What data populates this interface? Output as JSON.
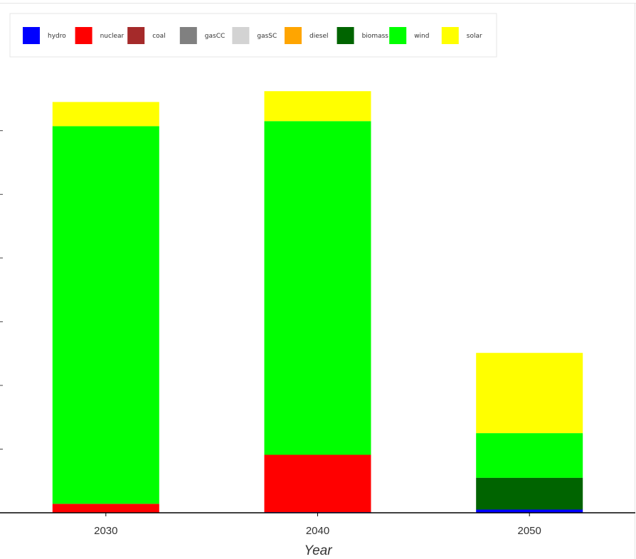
{
  "chart_data": {
    "type": "bar",
    "stacked": true,
    "xlabel": "Year",
    "categories": [
      "2030",
      "2040",
      "2050"
    ],
    "ylim": [
      0,
      640
    ],
    "yticks": [
      0,
      100,
      200,
      300,
      400,
      500,
      600
    ],
    "y_tick_labels_visible": false,
    "grid": false,
    "legend_position": "top-left",
    "series": [
      {
        "name": "hydro",
        "color": "#0000ff",
        "values": [
          0,
          1,
          5
        ]
      },
      {
        "name": "nuclear",
        "color": "#ff0000",
        "values": [
          14,
          90,
          0
        ]
      },
      {
        "name": "coal",
        "color": "#a52a2a",
        "values": [
          0,
          0,
          0
        ]
      },
      {
        "name": "gasCC",
        "color": "#808080",
        "values": [
          0,
          0,
          0
        ]
      },
      {
        "name": "gasSC",
        "color": "#d3d3d3",
        "values": [
          0,
          0,
          0
        ]
      },
      {
        "name": "diesel",
        "color": "#ffa500",
        "values": [
          0,
          0,
          0
        ]
      },
      {
        "name": "biomass",
        "color": "#006400",
        "values": [
          0,
          0,
          50
        ]
      },
      {
        "name": "wind",
        "color": "#00ff00",
        "values": [
          593,
          524,
          70
        ]
      },
      {
        "name": "solar",
        "color": "#ffff00",
        "values": [
          38,
          47,
          126
        ]
      }
    ]
  }
}
